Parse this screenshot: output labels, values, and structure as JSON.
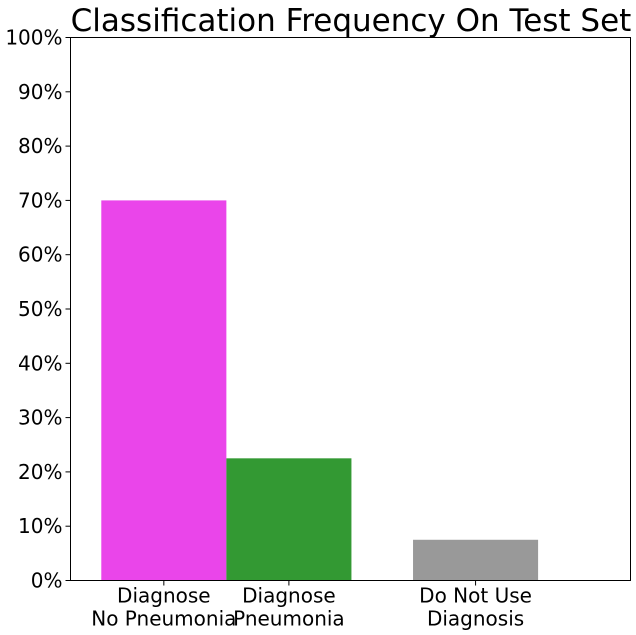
{
  "chart_data": {
    "type": "bar",
    "title": "Classification Frequency On Test Set",
    "xlabel": "",
    "ylabel": "",
    "ylim": [
      0,
      100
    ],
    "yticks": [
      0,
      10,
      20,
      30,
      40,
      50,
      60,
      70,
      80,
      90,
      100
    ],
    "ytick_suffix": "%",
    "x_range": [
      -0.5,
      2.5
    ],
    "grid": false,
    "legend": "none",
    "bars": [
      {
        "label_lines": [
          "Diagnose",
          "No Pneumonia"
        ],
        "x": 0,
        "width": 0.67,
        "value": 70,
        "color": "#EA45EA"
      },
      {
        "label_lines": [
          "Diagnose",
          "Pneumonia"
        ],
        "x": 0.67,
        "width": 0.67,
        "value": 22.5,
        "color": "#339933"
      },
      {
        "label_lines": [
          "Do Not Use",
          "Diagnosis"
        ],
        "x": 1.67,
        "width": 0.67,
        "value": 7.5,
        "color": "#999999"
      }
    ]
  }
}
